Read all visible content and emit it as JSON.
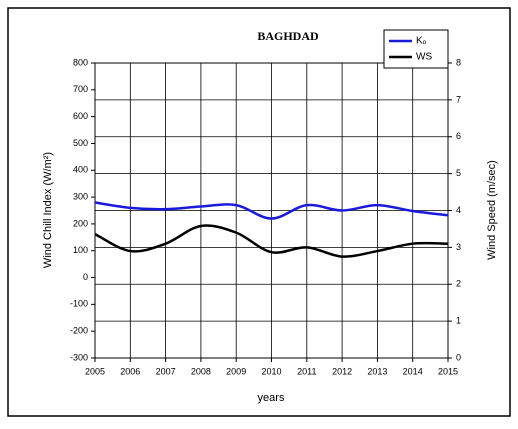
{
  "chart_data": {
    "type": "line",
    "title": "BAGHDAD",
    "x_label": "years",
    "y_label": "Wind Chill Index (W/m²)",
    "y2_label": "Wind Speed (m/sec)",
    "x": [
      2005,
      2006,
      2007,
      2008,
      2009,
      2010,
      2011,
      2012,
      2013,
      2014,
      2015
    ],
    "xlim": [
      2005,
      2015
    ],
    "xticks": [
      2005,
      2006,
      2007,
      2008,
      2009,
      2010,
      2011,
      2012,
      2013,
      2014,
      2015
    ],
    "ylim": [
      -300,
      800
    ],
    "yticks": [
      -300,
      -200,
      -100,
      0,
      100,
      200,
      300,
      400,
      500,
      600,
      700,
      800
    ],
    "y2lim": [
      0,
      8
    ],
    "y2ticks": [
      0,
      1,
      2,
      3,
      4,
      5,
      6,
      7,
      8
    ],
    "grid": true,
    "legend": "top-right",
    "series": [
      {
        "name": "Kₒ",
        "color": "#1a1adc",
        "values": [
          280,
          260,
          255,
          265,
          270,
          220,
          270,
          250,
          270,
          248,
          232
        ]
      },
      {
        "name": "WS",
        "color": "#000000",
        "axis": "y2",
        "values": [
          3.36,
          2.9,
          3.1,
          3.58,
          3.4,
          2.87,
          3.0,
          2.75,
          2.9,
          3.1,
          3.1
        ]
      }
    ]
  }
}
